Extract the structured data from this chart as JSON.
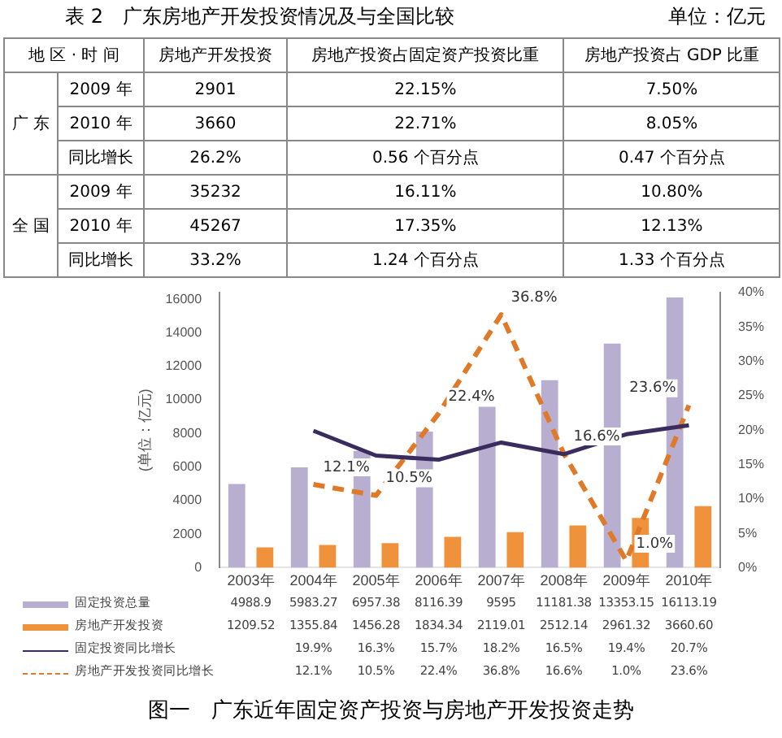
{
  "chart_data": {
    "type": "bar",
    "title": "图一　广东近年固定资产投资与房地产开发投资走势",
    "ylabel": "(单位：亿元)",
    "categories": [
      "2003年",
      "2004年",
      "2005年",
      "2006年",
      "2007年",
      "2008年",
      "2009年",
      "2010年"
    ],
    "series": [
      {
        "name": "固定投资总量",
        "color": "#b8aed0",
        "values": [
          4988.9,
          5983.27,
          6957.38,
          8116.39,
          9595,
          11181.38,
          13353.15,
          16113.19
        ],
        "value_labels": [
          "4988.9",
          "5983.27",
          "6957.38",
          "8116.39",
          "9595",
          "11181.38",
          "13353.15",
          "16113.19"
        ]
      },
      {
        "name": "房地产开发投资",
        "color": "#f0923c",
        "values": [
          1209.52,
          1355.84,
          1456.28,
          1834.34,
          2119.01,
          2512.14,
          2961.32,
          3660.6
        ],
        "value_labels": [
          "1209.52",
          "1355.84",
          "1456.28",
          "1834.34",
          "2119.01",
          "2512.14",
          "2961.32",
          "3660.60"
        ]
      },
      {
        "name": "固定投资同比增长",
        "type": "line",
        "axis": "y2",
        "color": "#3a2d5e",
        "line_style": "solid",
        "values": [
          null,
          19.9,
          16.3,
          15.7,
          18.2,
          16.5,
          19.4,
          20.7
        ],
        "value_labels": [
          null,
          "19.9%",
          "16.3%",
          "15.7%",
          "18.2%",
          "16.5%",
          "19.4%",
          "20.7%"
        ]
      },
      {
        "name": "房地产开发投资同比增长",
        "type": "line",
        "axis": "y2",
        "color": "#e07a28",
        "line_style": "dashed",
        "values": [
          null,
          12.1,
          10.5,
          22.4,
          36.8,
          16.6,
          1.0,
          23.6
        ],
        "value_labels": [
          null,
          "12.1%",
          "10.5%",
          "22.4%",
          "36.8%",
          "16.6%",
          "1.0%",
          "23.6%"
        ]
      }
    ],
    "ylim": [
      0,
      16400
    ],
    "yticks": [
      0,
      2000,
      4000,
      6000,
      8000,
      10000,
      12000,
      14000,
      16000
    ],
    "y2lim": [
      0,
      40
    ],
    "y2ticks": [
      {
        "value": 0,
        "label": "0%"
      },
      {
        "value": 5,
        "label": "5%"
      },
      {
        "value": 10,
        "label": "10%"
      },
      {
        "value": 15,
        "label": "15%"
      },
      {
        "value": 20,
        "label": "20%"
      },
      {
        "value": 25,
        "label": "25%"
      },
      {
        "value": 30,
        "label": "30%"
      },
      {
        "value": 35,
        "label": "35%"
      },
      {
        "value": 40,
        "label": "40%"
      }
    ],
    "legend": "bottom",
    "marker": "none",
    "annotations": [
      "表 2　广东房地产开发投资情况及与全国比较",
      "单位：亿元",
      "地 区 · 时 间",
      "房地产开发投资",
      "房地产投资占固定资产投资比重",
      "房地产投资占 GDP 比重",
      "广 东",
      "2009 年",
      "2901",
      "22.15%",
      "7.50%",
      "2010 年",
      "3660",
      "22.71%",
      "8.05%",
      "同比增长",
      "26.2%",
      "0.56 个百分点",
      "0.47 个百分点",
      "全 国",
      "2009 年",
      "35232",
      "16.11%",
      "10.80%",
      "2010 年",
      "45267",
      "17.35%",
      "12.13%",
      "同比增长",
      "33.2%",
      "1.24 个百分点",
      "1.33 个百分点"
    ]
  }
}
